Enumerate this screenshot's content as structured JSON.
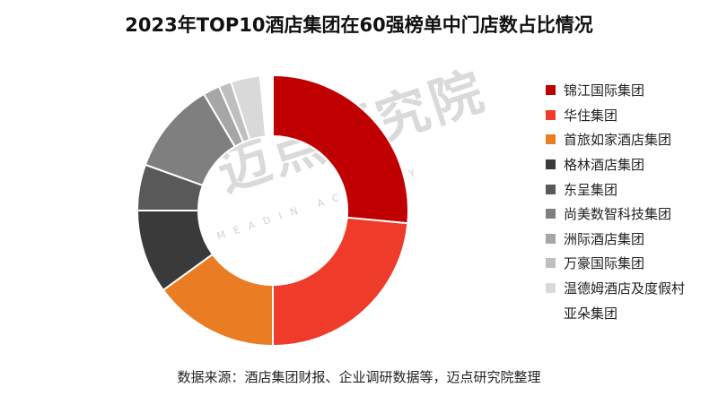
{
  "chart_data": {
    "type": "pie",
    "title": "2023年TOP10酒店集团在60强榜单中门店数占比情况",
    "donut": true,
    "categories": [
      "锦江国际集团",
      "华住集团",
      "首旅如家酒店集团",
      "格林酒店集团",
      "东呈集团",
      "尚美数智科技集团",
      "洲际酒店集团",
      "万豪国际集团",
      "温德姆酒店及度假村",
      "亚朵集团"
    ],
    "values": [
      26.5,
      23.5,
      15,
      10,
      5.5,
      11,
      2,
      1.5,
      3.5,
      1.5
    ],
    "unit": "%",
    "colors": [
      "#c00000",
      "#ee3b2a",
      "#ea7d24",
      "#3a3a3a",
      "#595959",
      "#7f7f7f",
      "#a6a6a6",
      "#bfbfbf",
      "#d9d9d9",
      "#ffffff"
    ],
    "legend_position": "right"
  },
  "source": "数据来源：酒店集团财报、企业调研数据等，迈点研究院整理",
  "watermark": {
    "text": "迈点研究院",
    "subtext": "MEADIN ACADEMY"
  }
}
